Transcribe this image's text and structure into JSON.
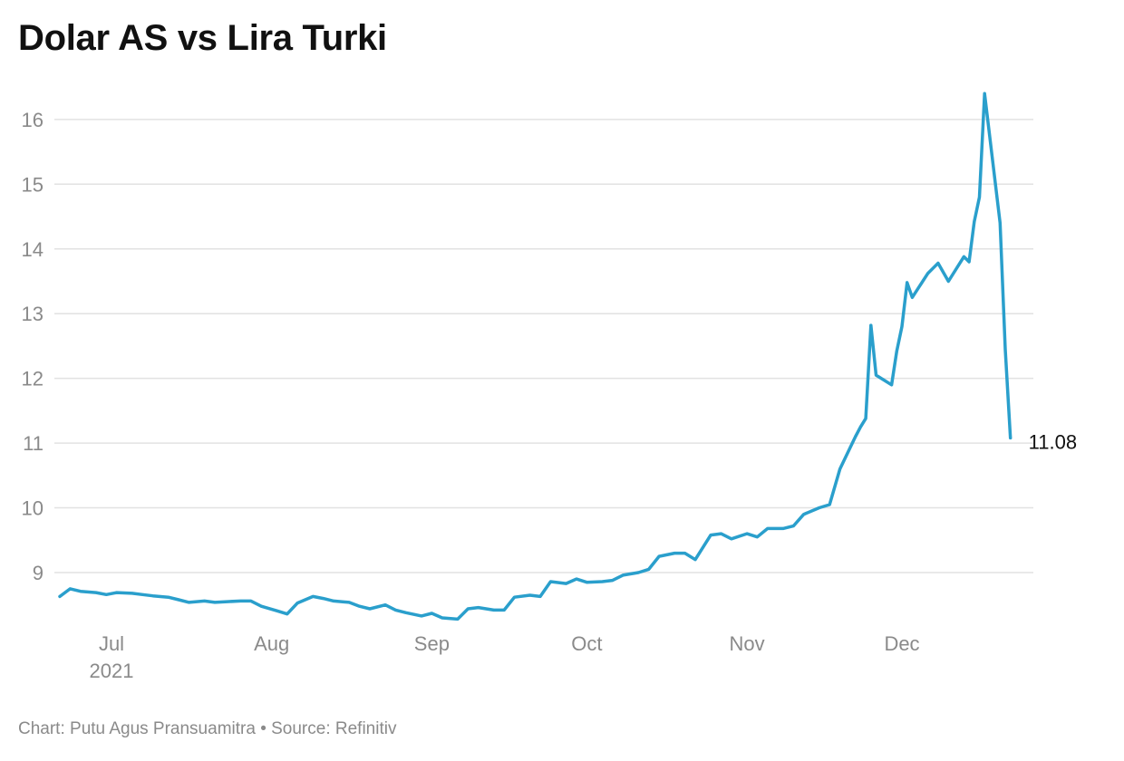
{
  "title": "Dolar AS vs Lira Turki",
  "footer": "Chart: Putu Agus Pransuamitra • Source: Refinitiv",
  "colors": {
    "line": "#2a9fcc",
    "grid": "#e2e2e2",
    "axis_text": "#8a8a8a",
    "title": "#111111"
  },
  "chart_data": {
    "type": "line",
    "title": "Dolar AS vs Lira Turki",
    "xlabel": "",
    "ylabel": "",
    "ylim": [
      8.2,
      16.5
    ],
    "y_ticks": [
      9,
      10,
      11,
      12,
      13,
      14,
      15,
      16
    ],
    "grid": true,
    "x_ticks": [
      {
        "date": "2021-07-01",
        "label": "Jul",
        "sublabel": "2021"
      },
      {
        "date": "2021-08-01",
        "label": "Aug",
        "sublabel": ""
      },
      {
        "date": "2021-09-01",
        "label": "Sep",
        "sublabel": ""
      },
      {
        "date": "2021-10-01",
        "label": "Oct",
        "sublabel": ""
      },
      {
        "date": "2021-11-01",
        "label": "Nov",
        "sublabel": ""
      },
      {
        "date": "2021-12-01",
        "label": "Dec",
        "sublabel": ""
      }
    ],
    "end_label": "11.08",
    "x": [
      "2021-06-21",
      "2021-06-23",
      "2021-06-25",
      "2021-06-28",
      "2021-06-30",
      "2021-07-02",
      "2021-07-05",
      "2021-07-07",
      "2021-07-09",
      "2021-07-12",
      "2021-07-14",
      "2021-07-16",
      "2021-07-19",
      "2021-07-21",
      "2021-07-23",
      "2021-07-26",
      "2021-07-28",
      "2021-07-30",
      "2021-08-02",
      "2021-08-04",
      "2021-08-06",
      "2021-08-09",
      "2021-08-11",
      "2021-08-13",
      "2021-08-16",
      "2021-08-18",
      "2021-08-20",
      "2021-08-23",
      "2021-08-25",
      "2021-08-27",
      "2021-08-30",
      "2021-09-01",
      "2021-09-03",
      "2021-09-06",
      "2021-09-08",
      "2021-09-10",
      "2021-09-13",
      "2021-09-15",
      "2021-09-17",
      "2021-09-20",
      "2021-09-22",
      "2021-09-24",
      "2021-09-27",
      "2021-09-29",
      "2021-10-01",
      "2021-10-04",
      "2021-10-06",
      "2021-10-08",
      "2021-10-11",
      "2021-10-13",
      "2021-10-15",
      "2021-10-18",
      "2021-10-20",
      "2021-10-22",
      "2021-10-25",
      "2021-10-27",
      "2021-10-29",
      "2021-11-01",
      "2021-11-03",
      "2021-11-05",
      "2021-11-08",
      "2021-11-10",
      "2021-11-12",
      "2021-11-15",
      "2021-11-17",
      "2021-11-19",
      "2021-11-22",
      "2021-11-23",
      "2021-11-24",
      "2021-11-25",
      "2021-11-26",
      "2021-11-29",
      "2021-11-30",
      "2021-12-01",
      "2021-12-02",
      "2021-12-03",
      "2021-12-06",
      "2021-12-07",
      "2021-12-08",
      "2021-12-10",
      "2021-12-13",
      "2021-12-14",
      "2021-12-15",
      "2021-12-16",
      "2021-12-17",
      "2021-12-20",
      "2021-12-21",
      "2021-12-22"
    ],
    "series": [
      {
        "values": [
          8.63,
          8.75,
          8.71,
          8.69,
          8.66,
          8.69,
          8.68,
          8.66,
          8.64,
          8.62,
          8.58,
          8.54,
          8.56,
          8.54,
          8.55,
          8.56,
          8.56,
          8.48,
          8.41,
          8.36,
          8.53,
          8.63,
          8.6,
          8.56,
          8.54,
          8.48,
          8.44,
          8.5,
          8.42,
          8.38,
          8.33,
          8.37,
          8.3,
          8.28,
          8.44,
          8.46,
          8.42,
          8.42,
          8.62,
          8.65,
          8.63,
          8.86,
          8.83,
          8.9,
          8.85,
          8.86,
          8.88,
          8.96,
          9.0,
          9.05,
          9.25,
          9.3,
          9.3,
          9.2,
          9.58,
          9.6,
          9.52,
          9.6,
          9.55,
          9.68,
          9.68,
          9.72,
          9.9,
          10.0,
          10.05,
          10.6,
          11.1,
          11.25,
          11.38,
          12.82,
          12.05,
          11.9,
          12.42,
          12.8,
          13.48,
          13.25,
          13.62,
          13.7,
          13.78,
          13.5,
          13.88,
          13.8,
          14.42,
          14.8,
          16.4,
          14.4,
          12.45,
          11.08
        ]
      }
    ]
  }
}
